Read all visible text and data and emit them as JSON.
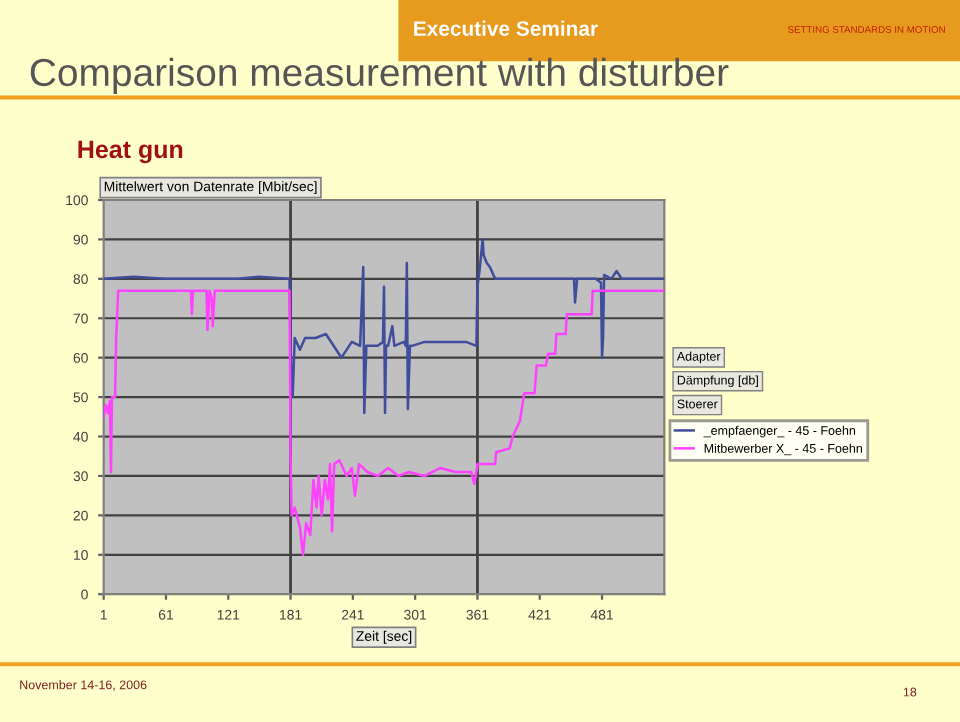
{
  "chart_data": {
    "type": "line",
    "title": "Comparison measurement with disturber",
    "subtitle": "Heat gun",
    "ylabel": "Mittelwert von Datenrate [Mbit/sec]",
    "xlabel": "Zeit [sec]",
    "annotations": [
      "Executive Seminar",
      "SETTING STANDARDS IN MOTION",
      "Adapter",
      "Dämpfung [db]",
      "Stoerer",
      "November 14-16, 2006",
      "18"
    ],
    "xlim": [
      1,
      541
    ],
    "xticks": [
      1,
      61,
      121,
      181,
      241,
      301,
      361,
      421,
      481
    ],
    "ylim": [
      0,
      100
    ],
    "yticks": [
      0,
      10,
      20,
      30,
      40,
      50,
      60,
      70,
      80,
      90,
      100
    ],
    "grid": "y",
    "legend": "right",
    "marker": "none",
    "line_style": "solid",
    "ref_lines": [
      {
        "axis": "x",
        "value": 181,
        "label": null,
        "color": "#404040"
      },
      {
        "axis": "x",
        "value": 361,
        "label": null,
        "color": "#404040"
      }
    ],
    "series": [
      {
        "name": "_empfaenger_ - 45 - Foehn",
        "color": "#404c9c",
        "x": [
          1,
          30,
          60,
          100,
          130,
          150,
          180,
          181,
          183,
          185,
          190,
          195,
          205,
          215,
          225,
          230,
          240,
          248,
          251,
          252,
          254,
          256,
          265,
          270,
          271,
          272,
          273,
          275,
          279,
          281,
          290,
          292,
          293,
          294,
          296,
          298,
          310,
          330,
          350,
          360,
          361,
          363,
          366,
          367,
          370,
          373,
          378,
          382,
          400,
          430,
          454,
          455,
          457,
          475,
          480,
          481,
          482,
          483,
          490,
          495,
          500,
          520,
          541
        ],
        "values": [
          80,
          80.5,
          80,
          80,
          80,
          80.5,
          80,
          62,
          50,
          65,
          62,
          65,
          65,
          66,
          62,
          60,
          64,
          63,
          83,
          46,
          63,
          63,
          63,
          64,
          78,
          46,
          63,
          63,
          68,
          63,
          64,
          63,
          84,
          47,
          63,
          63,
          64,
          64,
          64,
          63,
          78,
          82,
          90,
          86,
          84,
          83,
          80,
          80,
          80,
          80,
          80,
          74,
          80,
          80,
          79,
          60,
          65,
          81,
          80,
          82,
          80,
          80,
          80
        ]
      },
      {
        "name": "Mitbewerber X_ - 45 - Foehn",
        "color": "#ff40ff",
        "x": [
          1,
          3,
          5,
          7,
          8,
          9,
          12,
          13,
          15,
          60,
          85,
          86,
          87,
          100,
          101,
          103,
          105,
          106,
          108,
          120,
          180,
          181,
          182,
          185,
          190,
          193,
          196,
          200,
          203,
          206,
          208,
          211,
          214,
          217,
          219,
          221,
          223,
          228,
          235,
          240,
          243,
          247,
          255,
          265,
          275,
          285,
          295,
          310,
          325,
          340,
          355,
          358,
          360,
          361,
          378,
          379,
          392,
          395,
          402,
          406,
          416,
          418,
          427,
          429,
          436,
          437,
          446,
          447,
          471,
          472,
          541
        ],
        "values": [
          45,
          48,
          46,
          49,
          31,
          50,
          50,
          65,
          77,
          77,
          77,
          71,
          77,
          77,
          67,
          77,
          75,
          68,
          77,
          77,
          77,
          35,
          20,
          22,
          17,
          10,
          18,
          15,
          29,
          22,
          30,
          20,
          29,
          24,
          33,
          16,
          33,
          34,
          30,
          32,
          25,
          33,
          31,
          30,
          32,
          30,
          31,
          30,
          32,
          31,
          31,
          28,
          31,
          33,
          33,
          36,
          37,
          40,
          44,
          51,
          51,
          58,
          58,
          61,
          61,
          66,
          66,
          71,
          71,
          77,
          77
        ]
      }
    ]
  }
}
